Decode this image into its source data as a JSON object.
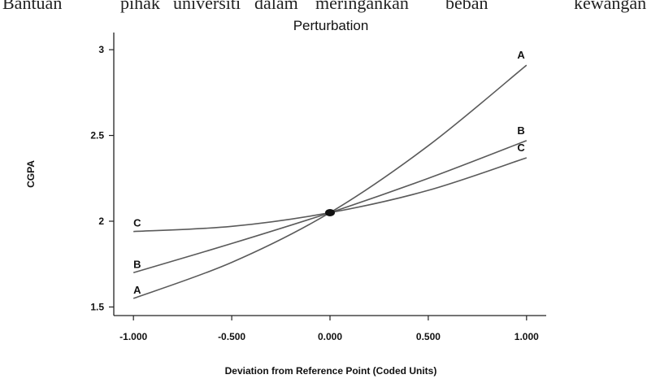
{
  "header_text": {
    "words": [
      "Bantuan",
      "pihak",
      "universiti",
      "dalam",
      "meringankan",
      "beban",
      "kewangan"
    ]
  },
  "chart_data": {
    "type": "line",
    "title": "Perturbation",
    "xlabel": "Deviation from Reference Point (Coded Units)",
    "ylabel": "CGPA",
    "xlim": [
      -1.1,
      1.1
    ],
    "ylim": [
      1.45,
      3.1
    ],
    "x_ticks": [
      -1.0,
      -0.5,
      0.0,
      0.5,
      1.0
    ],
    "x_tick_labels": [
      "-1.000",
      "-0.500",
      "0.000",
      "0.500",
      "1.000"
    ],
    "y_ticks": [
      1.5,
      2,
      2.5,
      3
    ],
    "y_tick_labels": [
      "1.5",
      "2",
      "2.5",
      "3"
    ],
    "reference_point": {
      "x": 0.0,
      "y": 2.05
    },
    "series": [
      {
        "name": "A",
        "x": [
          -1.0,
          -0.5,
          0.0,
          0.5,
          1.0
        ],
        "y": [
          1.55,
          1.76,
          2.05,
          2.44,
          2.91
        ]
      },
      {
        "name": "B",
        "x": [
          -1.0,
          -0.5,
          0.0,
          0.5,
          1.0
        ],
        "y": [
          1.7,
          1.87,
          2.05,
          2.25,
          2.47
        ]
      },
      {
        "name": "C",
        "x": [
          -1.0,
          -0.5,
          0.0,
          0.5,
          1.0
        ],
        "y": [
          1.94,
          1.97,
          2.05,
          2.18,
          2.37
        ]
      }
    ],
    "line_color": "#5a5a5a",
    "grid": false
  }
}
